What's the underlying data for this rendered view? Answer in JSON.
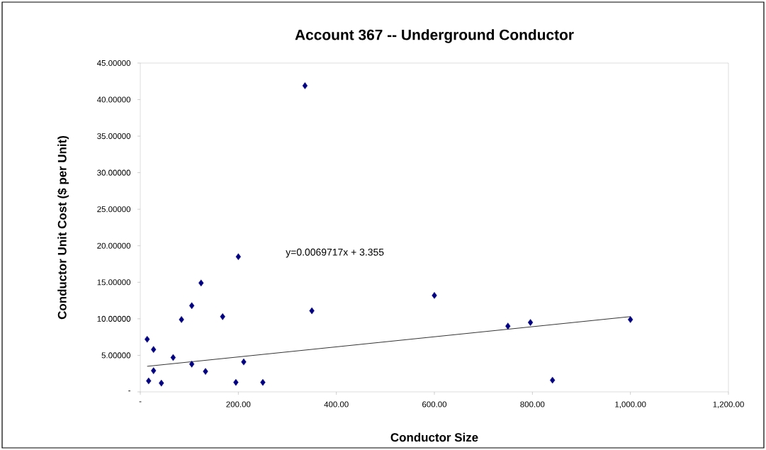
{
  "chart_data": {
    "type": "scatter",
    "title": "Account 367 -- Underground Conductor",
    "xlabel": "Conductor Size",
    "ylabel": "Conductor Unit Cost ($ per Unit)",
    "annotations": [
      "y=0.0069717x + 3.355"
    ],
    "xlim": [
      0,
      1200
    ],
    "ylim": [
      0,
      45
    ],
    "xticks": [
      {
        "value": 0,
        "label": "-"
      },
      {
        "value": 200,
        "label": "200.00"
      },
      {
        "value": 400,
        "label": "400.00"
      },
      {
        "value": 600,
        "label": "600.00"
      },
      {
        "value": 800,
        "label": "800.00"
      },
      {
        "value": 1000,
        "label": "1,000.00"
      },
      {
        "value": 1200,
        "label": "1,200.00"
      }
    ],
    "yticks": [
      {
        "value": 0,
        "label": "-"
      },
      {
        "value": 5,
        "label": "5.00000"
      },
      {
        "value": 10,
        "label": "10.00000"
      },
      {
        "value": 15,
        "label": "15.00000"
      },
      {
        "value": 20,
        "label": "20.00000"
      },
      {
        "value": 25,
        "label": "25.00000"
      },
      {
        "value": 30,
        "label": "30.00000"
      },
      {
        "value": 35,
        "label": "35.00000"
      },
      {
        "value": 40,
        "label": "40.00000"
      },
      {
        "value": 45,
        "label": "45.00000"
      }
    ],
    "grid": false,
    "marker": "diamond",
    "series": [
      {
        "color": "#000080",
        "x": [
          14,
          27,
          17,
          27,
          43,
          67,
          84,
          105,
          105,
          124,
          133,
          168,
          200,
          195,
          211,
          250,
          336,
          350,
          600,
          750,
          796,
          841,
          1000
        ],
        "values": [
          7.2,
          5.8,
          1.5,
          2.9,
          1.2,
          4.7,
          9.9,
          11.8,
          3.8,
          14.9,
          2.8,
          10.3,
          18.5,
          1.3,
          4.1,
          1.3,
          41.9,
          11.1,
          13.2,
          9.0,
          9.5,
          1.6,
          9.9
        ]
      },
      {
        "type": "line",
        "color": "#000000",
        "marker": "none",
        "line_style": "solid",
        "x": [
          14,
          1000
        ],
        "values": [
          3.5,
          10.3
        ]
      }
    ]
  }
}
